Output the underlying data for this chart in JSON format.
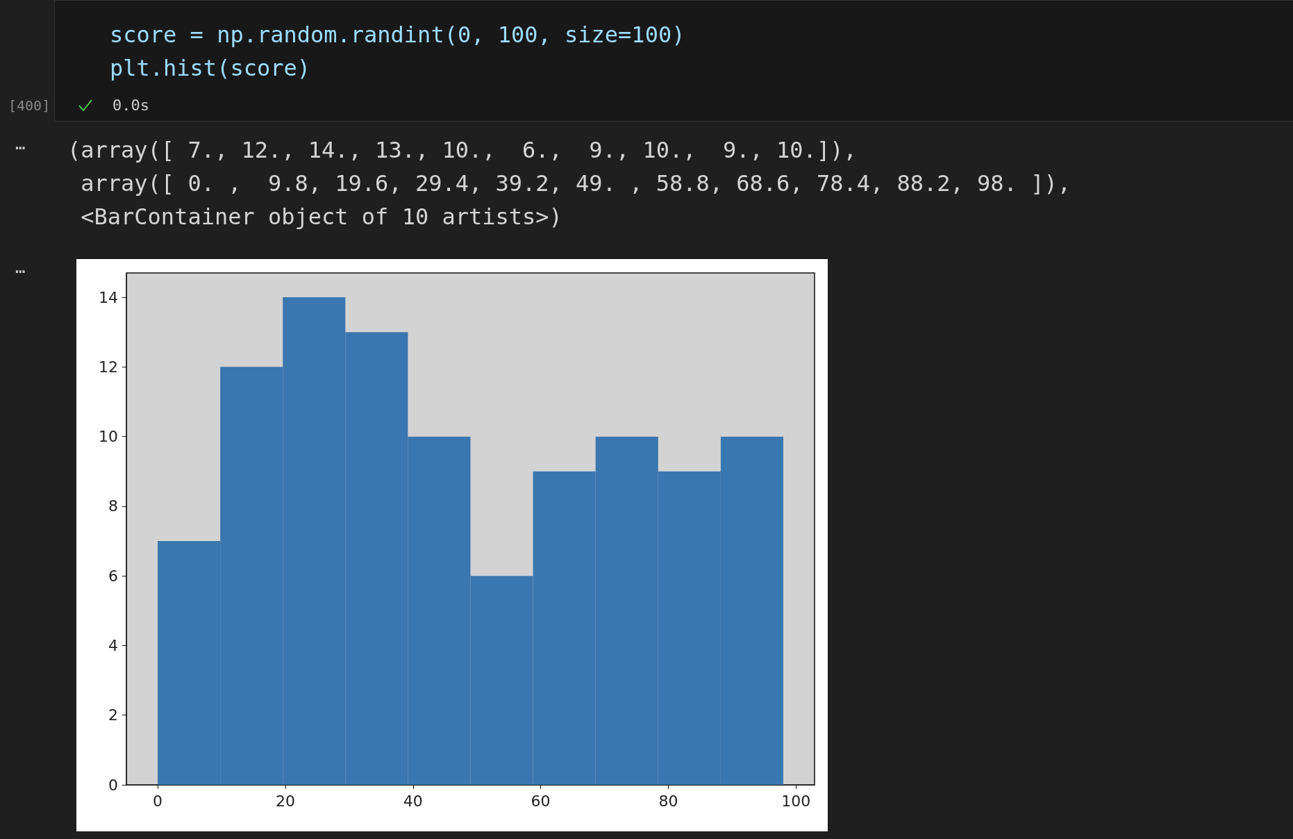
{
  "chart_data": {
    "type": "histogram",
    "bins": [
      0,
      9.8,
      19.6,
      29.4,
      39.2,
      49,
      58.8,
      68.6,
      78.4,
      88.2,
      98
    ],
    "values": [
      7,
      12,
      14,
      13,
      10,
      6,
      9,
      10,
      9,
      10
    ],
    "color": "#3a76af",
    "xlim": [
      -4.9,
      102.9
    ],
    "xticks": [
      0,
      20,
      40,
      60,
      80,
      100
    ],
    "ylim": [
      0,
      14.7
    ],
    "yticks": [
      0,
      2,
      4,
      6,
      8,
      10,
      12,
      14
    ],
    "annotations": [
      "score = np.random.randint(0, 100, size=100)",
      "plt.hist(score)",
      "[400]",
      "0.0s",
      "…",
      "(array([ 7., 12., 14., 13., 10.,  6.,  9., 10.,  9., 10.]),",
      " array([ 0. ,  9.8, 19.6, 29.4, 39.2, 49. , 58.8, 68.6, 78.4, 88.2, 98. ]),",
      " <BarContainer object of 10 artists>)",
      "…"
    ]
  }
}
